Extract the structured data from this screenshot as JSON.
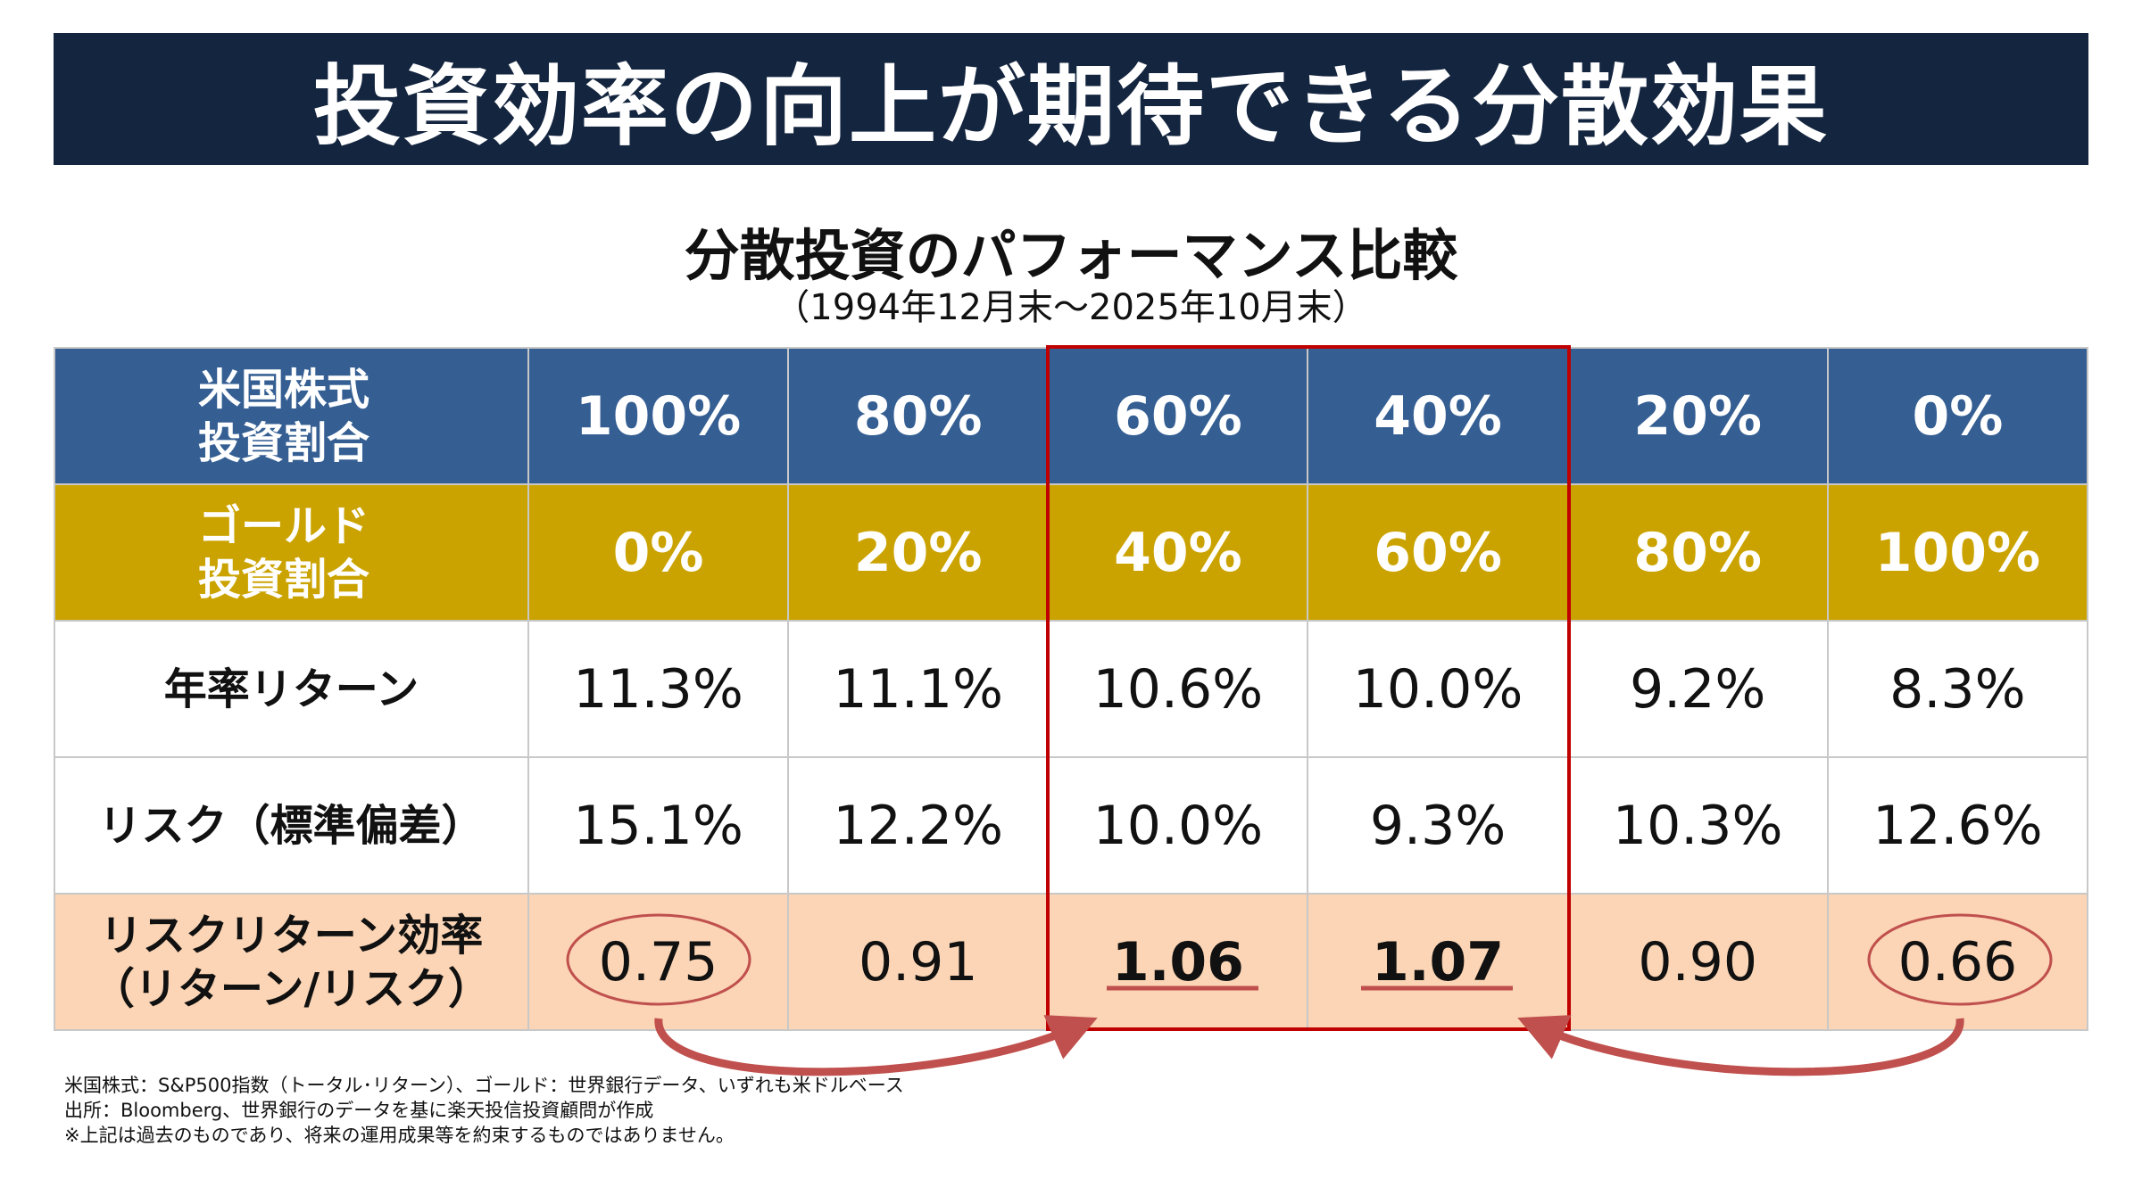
{
  "title": "投資効率の向上が期待できる分散効果",
  "subtitle": "分散投資のパフォーマンス比較",
  "period": "（1994年12月末～2025年10月末）",
  "table": {
    "rows": [
      {
        "label": "米国株式\n投資割合",
        "values": [
          "100%",
          "80%",
          "60%",
          "40%",
          "20%",
          "0%"
        ]
      },
      {
        "label": "ゴールド\n投資割合",
        "values": [
          "0%",
          "20%",
          "40%",
          "60%",
          "80%",
          "100%"
        ]
      },
      {
        "label": "年率リターン",
        "values": [
          "11.3%",
          "11.1%",
          "10.6%",
          "10.0%",
          "9.2%",
          "8.3%"
        ]
      },
      {
        "label": "リスク（標準偏差）",
        "values": [
          "15.1%",
          "12.2%",
          "10.0%",
          "9.3%",
          "10.3%",
          "12.6%"
        ]
      },
      {
        "label": "リスクリターン効率\n（リターン/リスク）",
        "values": [
          "0.75",
          "0.91",
          "1.06",
          "1.07",
          "0.90",
          "0.66"
        ]
      }
    ]
  },
  "footnotes": [
    "米国株式：S&P500指数（トータル･リターン）、ゴールド：世界銀行データ、いずれも米ドルベース",
    "出所：Bloomberg、世界銀行のデータを基に楽天投信投資顧問が作成",
    "※上記は過去のものであり、将来の運用成果等を約束するものではありません。"
  ],
  "colors": {
    "title_bg": "#14253f",
    "stock_row": "#355f93",
    "gold_row": "#cba300",
    "efficiency_row": "#fbd5b5",
    "highlight": "#c00000",
    "arrow": "#c0504d"
  }
}
